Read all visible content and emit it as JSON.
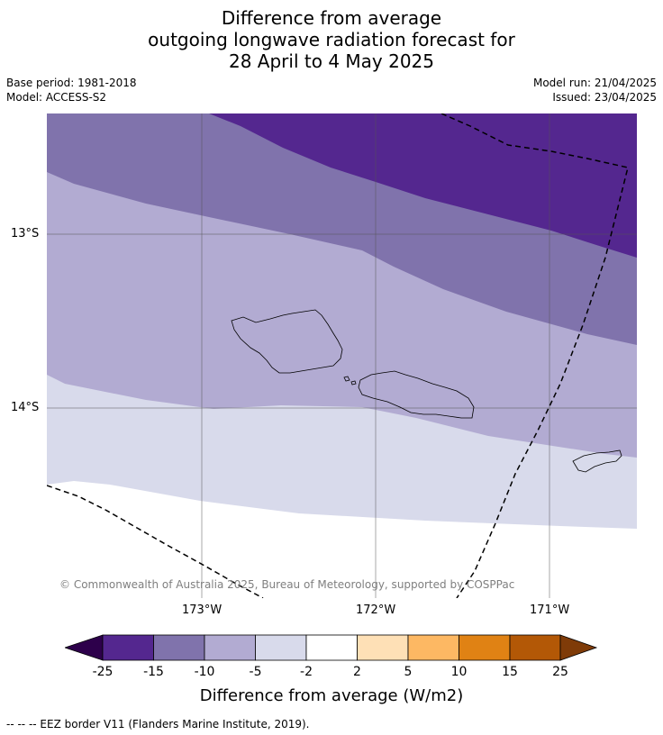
{
  "title": {
    "line1": "Difference from average",
    "line2": "outgoing longwave radiation forecast for",
    "line3": "28 April to 4 May 2025"
  },
  "meta": {
    "base_period": "Base period: 1981-2018",
    "model": "Model: ACCESS-S2",
    "model_run": "Model run: 21/04/2025",
    "issued": "Issued: 23/04/2025"
  },
  "map": {
    "copyright": "© Commonwealth of Australia 2025, Bureau of Meteorology, supported by COSPPac",
    "lat_ticks": [
      "13°S",
      "14°S"
    ],
    "lon_ticks": [
      "173°W",
      "172°W",
      "171°W"
    ],
    "fill_colors": {
      "minus_25_to_minus_15": "#54278f",
      "minus_15_to_minus_10": "#8073ac",
      "minus_10_to_minus_5": "#b2abd2",
      "minus_5_to_minus_2": "#d8daeb",
      "minus_2_to_2": "#ffffff"
    }
  },
  "colorbar": {
    "title": "Difference from average (W/m2)",
    "labels": [
      "-25",
      "-15",
      "-10",
      "-5",
      "-2",
      "2",
      "5",
      "10",
      "15",
      "25"
    ],
    "colors": [
      "#54278f",
      "#8073ac",
      "#b2abd2",
      "#d8daeb",
      "#ffffff",
      "#fee0b6",
      "#fdb863",
      "#e08214",
      "#b35806"
    ],
    "under_color": "#2d004b",
    "over_color": "#7f3b08"
  },
  "footer": {
    "legend": "--  --  -- EEZ border V11 (Flanders Marine Institute, 2019)."
  }
}
